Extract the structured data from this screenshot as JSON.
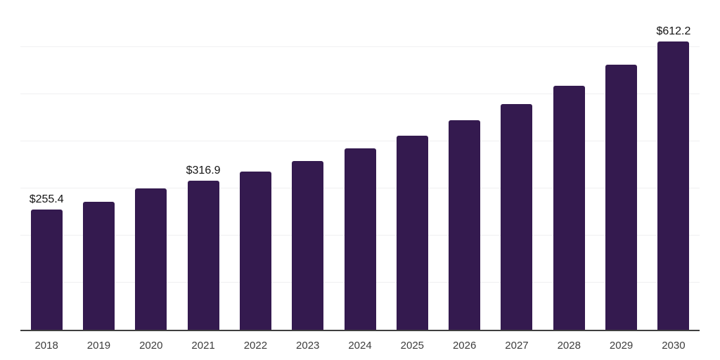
{
  "chart_data": {
    "type": "bar",
    "title": "",
    "xlabel": "",
    "ylabel": "",
    "categories": [
      "2018",
      "2019",
      "2020",
      "2021",
      "2022",
      "2023",
      "2024",
      "2025",
      "2026",
      "2027",
      "2028",
      "2029",
      "2030"
    ],
    "values": [
      255.4,
      271.5,
      299.8,
      316.9,
      336.3,
      358.2,
      384.6,
      412.4,
      444.2,
      478.9,
      518.2,
      562.9,
      612.2
    ],
    "bar_labels": [
      "$255.4",
      "",
      "",
      "$316.9",
      "",
      "",
      "",
      "",
      "",
      "",
      "",
      "",
      "$612.2"
    ],
    "ylim": [
      0,
      700
    ],
    "gridline_step": 100,
    "grid": true,
    "legend_position": "none",
    "colors": {
      "bar": "#341a4f",
      "grid": "#f0f0f1",
      "axis": "#3f3f3f",
      "bar_label_text": "#141414",
      "tick_text": "#3d3d3d",
      "background": "#ffffff"
    }
  }
}
